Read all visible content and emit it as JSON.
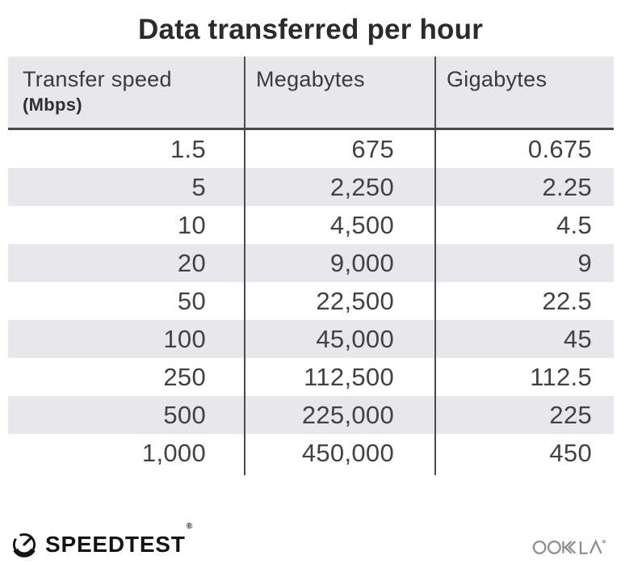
{
  "title": "Data transferred per hour",
  "chart_data": {
    "type": "table",
    "title": "Data transferred per hour",
    "columns": [
      {
        "label": "Transfer speed",
        "sublabel": "(Mbps)"
      },
      {
        "label": "Megabytes",
        "sublabel": ""
      },
      {
        "label": "Gigabytes",
        "sublabel": ""
      }
    ],
    "rows": [
      [
        "1.5",
        "675",
        "0.675"
      ],
      [
        "5",
        "2,250",
        "2.25"
      ],
      [
        "10",
        "4,500",
        "4.5"
      ],
      [
        "20",
        "9,000",
        "9"
      ],
      [
        "50",
        "22,500",
        "22.5"
      ],
      [
        "100",
        "45,000",
        "45"
      ],
      [
        "250",
        "112,500",
        "112.5"
      ],
      [
        "500",
        "225,000",
        "225"
      ],
      [
        "1,000",
        "450,000",
        "450"
      ]
    ],
    "layout": {
      "striped_rows": "even rows shaded",
      "stripe_color": "#e8e7eb",
      "header_bg": "#e8e7eb",
      "divider_color": "#4b4b4b",
      "number_alignment": "right"
    }
  },
  "footer": {
    "speedtest_label": "SPEEDTEST",
    "speedtest_reg": "®",
    "ookla_label": "OOKLA"
  },
  "colors": {
    "title_text": "#2b2b2b",
    "header_text": "#3a3a3a",
    "cell_text": "#424242",
    "stripe_bg": "#e8e7eb",
    "divider": "#4b4b4b",
    "speedtest_black": "#141414",
    "ookla_gray": "#8e8e8e"
  }
}
